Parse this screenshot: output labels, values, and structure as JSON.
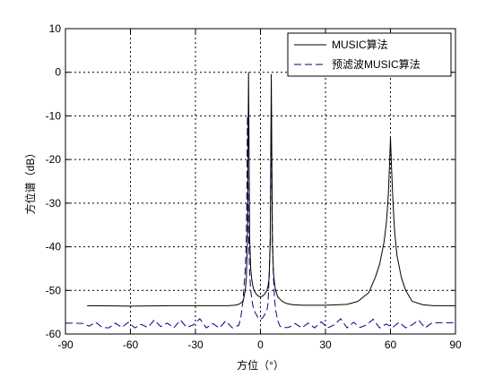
{
  "chart_data": {
    "type": "line",
    "title": "",
    "xlabel": "方位（°）",
    "ylabel": "方位谱（dB）",
    "xlim": [
      -90,
      90
    ],
    "ylim": [
      -60,
      10
    ],
    "x_ticks": [
      -90,
      -60,
      -30,
      0,
      30,
      60,
      90
    ],
    "y_ticks": [
      10,
      0,
      -10,
      -20,
      -30,
      -40,
      -50,
      -60
    ],
    "grid": true,
    "grid_style": "dotted",
    "legend_position": "top-right",
    "series": [
      {
        "name": "MUSIC算法",
        "color": "#000000",
        "line_style": "solid",
        "x": [
          -80,
          -60,
          -40,
          -20,
          -15,
          -12,
          -10,
          -8,
          -7,
          -6.5,
          -6,
          -5.5,
          -5,
          -4.5,
          -4,
          -3.5,
          -3,
          -2,
          -1,
          0,
          1,
          2,
          3,
          3.5,
          4,
          4.5,
          5,
          5.5,
          6,
          6.5,
          7,
          8,
          10,
          12,
          15,
          20,
          30,
          40,
          45,
          50,
          53,
          55,
          57,
          58,
          58.5,
          59,
          59.5,
          60,
          60.5,
          61,
          61.5,
          62,
          63,
          65,
          67,
          70,
          75,
          80,
          90
        ],
        "y": [
          -53.5,
          -53.6,
          -53.5,
          -53.5,
          -53.5,
          -53.4,
          -53.2,
          -52.5,
          -50,
          -47,
          -38.5,
          0,
          -38,
          -45,
          -47.5,
          -49,
          -50,
          -50.8,
          -51.3,
          -51.5,
          -51.3,
          -50.8,
          -50,
          -49,
          -47,
          -39,
          -0.5,
          -39,
          -46,
          -48.5,
          -50,
          -51.5,
          -52.5,
          -53,
          -53.3,
          -53.4,
          -53.4,
          -53.2,
          -52.5,
          -50.5,
          -47,
          -44,
          -39,
          -35,
          -32,
          -28,
          -22,
          -15,
          -22,
          -28,
          -33,
          -37,
          -42,
          -47,
          -50,
          -52.5,
          -53.3,
          -53.5,
          -53.5
        ]
      },
      {
        "name": "预滤波MUSIC算法",
        "color": "#00008b",
        "line_style": "dashed",
        "x": [
          -90,
          -86,
          -82,
          -79,
          -76,
          -73,
          -70,
          -67,
          -64,
          -61,
          -58,
          -55,
          -52,
          -49,
          -46,
          -43,
          -40,
          -37,
          -34,
          -31,
          -28,
          -25,
          -22,
          -19,
          -16,
          -13,
          -10,
          -9,
          -8,
          -7,
          -6.5,
          -6,
          -5.5,
          -5,
          -4.5,
          -4,
          -3.5,
          -3,
          -2,
          -1,
          0,
          1,
          2,
          3,
          3.5,
          4,
          4.5,
          5,
          5.5,
          6,
          6.5,
          7,
          8,
          9,
          10,
          13,
          16,
          19,
          22,
          25,
          28,
          31,
          34,
          37,
          40,
          43,
          46,
          49,
          52,
          55,
          58,
          61,
          64,
          67,
          70,
          73,
          76,
          79,
          82,
          86,
          90
        ],
        "y": [
          -57.5,
          -57.5,
          -57.6,
          -58.2,
          -57.3,
          -58.5,
          -58.6,
          -57.5,
          -58.5,
          -57.3,
          -58.6,
          -57.8,
          -58.5,
          -56.8,
          -58.3,
          -57.5,
          -58.6,
          -56.8,
          -58.5,
          -57.9,
          -56.5,
          -58.6,
          -57.6,
          -58.6,
          -57,
          -58.6,
          -58,
          -56,
          -52,
          -45,
          -38,
          -10,
          -37,
          -46,
          -50,
          -52,
          -53.5,
          -54.5,
          -55.5,
          -56.3,
          -56.6,
          -56.3,
          -55.5,
          -54.5,
          -53,
          -47,
          -38,
          -9,
          -38,
          -47,
          -52,
          -54.5,
          -57,
          -58.2,
          -58.5,
          -58.5,
          -57.6,
          -58.6,
          -57.5,
          -58.6,
          -57.2,
          -58.6,
          -57.9,
          -56.5,
          -58.6,
          -57.3,
          -58.5,
          -57.9,
          -56.6,
          -58.6,
          -57.7,
          -58.5,
          -57.3,
          -58.6,
          -57.9,
          -56.8,
          -58.6,
          -57.5,
          -57.4,
          -57.4,
          -57.4
        ]
      }
    ]
  }
}
